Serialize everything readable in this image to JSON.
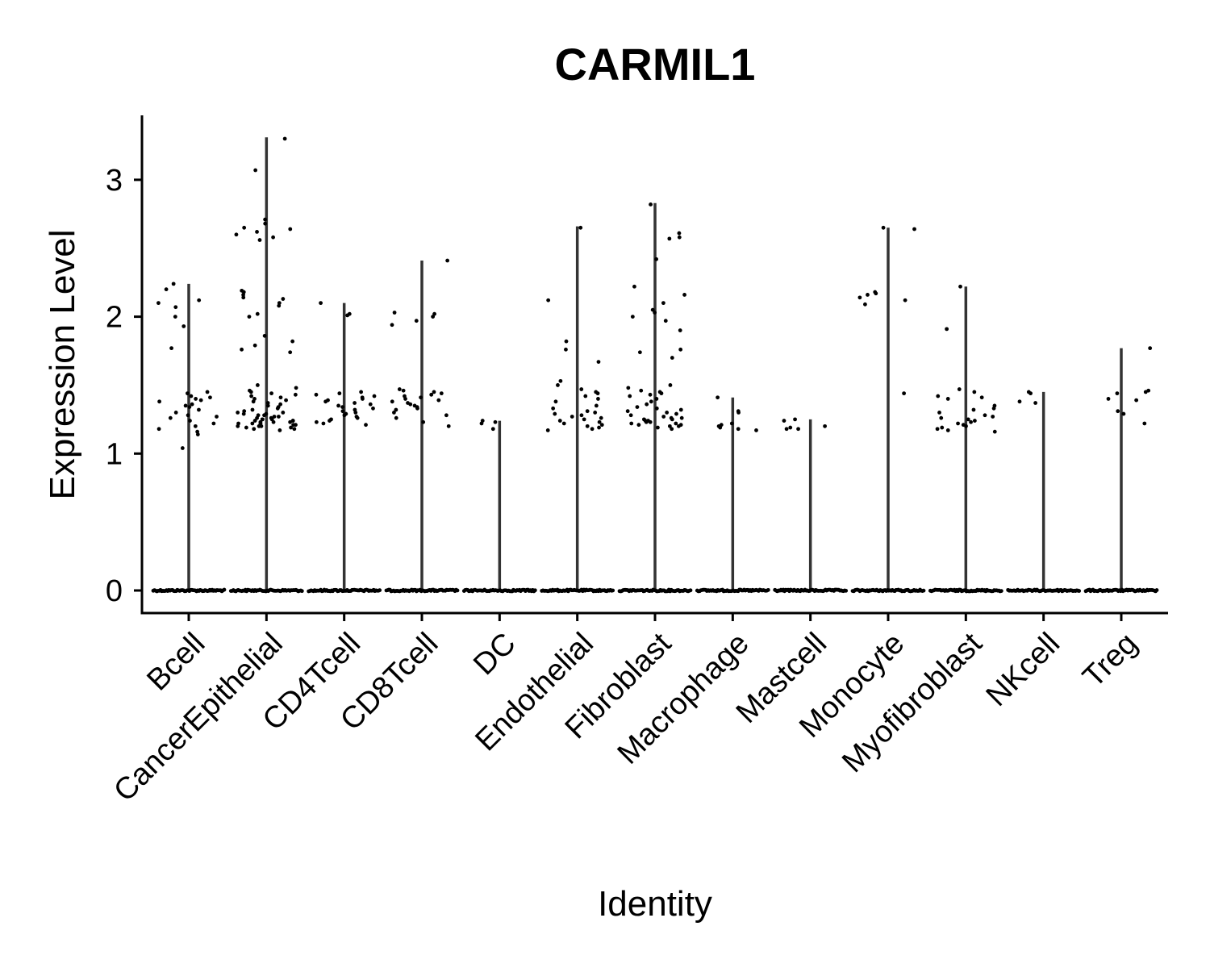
{
  "chart_data": {
    "type": "violin",
    "title": "CARMIL1",
    "xlabel": "Identity",
    "ylabel": "Expression Level",
    "ylim": [
      -0.16,
      3.48
    ],
    "yticks": [
      0,
      1,
      2,
      3
    ],
    "grid": false,
    "legend": "none",
    "point_color": "#000000",
    "violin_color": "#333333",
    "categories": [
      "Bcell",
      "CancerEpithelial",
      "CD4Tcell",
      "CD8Tcell",
      "DC",
      "Endothelial",
      "Fibroblast",
      "Macrophage",
      "Mastcell",
      "Monocyte",
      "Myofibroblast",
      "NKcell",
      "Treg"
    ],
    "series": [
      {
        "values": [
          [
            2.24,
            2.2,
            2.12,
            2.1,
            2.07,
            2.0,
            1.93,
            1.77,
            1.45,
            1.44,
            1.42,
            1.41,
            1.4,
            1.39,
            1.38,
            1.36,
            1.35,
            1.34,
            1.32,
            1.3,
            1.28,
            1.27,
            1.26,
            1.24,
            1.22,
            1.2,
            1.18,
            1.16,
            1.14,
            1.04
          ],
          [
            3.3,
            3.07,
            2.71,
            2.68,
            2.65,
            2.64,
            2.62,
            2.6,
            2.58,
            2.56,
            2.19,
            2.18,
            2.16,
            2.14,
            2.13,
            2.1,
            2.08,
            2.02,
            2.0,
            1.86,
            1.82,
            1.79,
            1.76,
            1.74,
            1.5,
            1.48,
            1.46,
            1.45,
            1.44,
            1.43,
            1.42,
            1.41,
            1.4,
            1.39,
            1.38,
            1.37,
            1.36,
            1.35,
            1.34,
            1.33,
            1.32,
            1.31,
            1.3,
            1.3,
            1.29,
            1.29,
            1.28,
            1.28,
            1.27,
            1.27,
            1.26,
            1.26,
            1.25,
            1.25,
            1.25,
            1.24,
            1.24,
            1.24,
            1.23,
            1.23,
            1.23,
            1.22,
            1.22,
            1.22,
            1.21,
            1.21,
            1.21,
            1.2,
            1.2,
            1.2,
            1.19,
            1.19,
            1.18,
            1.18,
            1.17
          ],
          [
            2.1,
            2.02,
            2.01,
            1.45,
            1.44,
            1.43,
            1.42,
            1.41,
            1.4,
            1.39,
            1.38,
            1.37,
            1.36,
            1.35,
            1.34,
            1.33,
            1.32,
            1.31,
            1.3,
            1.29,
            1.28,
            1.27,
            1.26,
            1.25,
            1.24,
            1.23,
            1.22,
            1.21
          ],
          [
            2.41,
            2.03,
            2.02,
            2.0,
            1.97,
            1.94,
            1.47,
            1.46,
            1.45,
            1.44,
            1.43,
            1.42,
            1.41,
            1.4,
            1.39,
            1.38,
            1.37,
            1.36,
            1.35,
            1.34,
            1.33,
            1.32,
            1.3,
            1.28,
            1.26,
            1.23,
            1.2
          ],
          [
            1.24,
            1.23,
            1.22,
            1.18
          ],
          [
            2.65,
            2.12,
            1.82,
            1.76,
            1.67,
            1.53,
            1.5,
            1.47,
            1.45,
            1.44,
            1.42,
            1.4,
            1.38,
            1.35,
            1.33,
            1.31,
            1.3,
            1.29,
            1.28,
            1.27,
            1.26,
            1.25,
            1.24,
            1.23,
            1.22,
            1.21,
            1.2,
            1.19,
            1.18,
            1.17
          ],
          [
            2.82,
            2.61,
            2.58,
            2.57,
            2.42,
            2.22,
            2.16,
            2.1,
            2.05,
            2.03,
            2.0,
            1.97,
            1.9,
            1.76,
            1.74,
            1.7,
            1.5,
            1.48,
            1.46,
            1.45,
            1.44,
            1.43,
            1.42,
            1.4,
            1.38,
            1.36,
            1.34,
            1.33,
            1.32,
            1.31,
            1.3,
            1.29,
            1.28,
            1.27,
            1.26,
            1.26,
            1.25,
            1.25,
            1.24,
            1.24,
            1.23,
            1.23,
            1.22,
            1.22,
            1.21,
            1.21,
            1.2,
            1.2,
            1.19,
            1.18
          ],
          [
            1.41,
            1.31,
            1.3,
            1.22,
            1.21,
            1.2,
            1.19,
            1.18,
            1.17
          ],
          [
            1.25,
            1.24,
            1.2,
            1.19,
            1.18,
            1.18
          ],
          [
            2.65,
            2.64,
            2.18,
            2.17,
            2.16,
            2.14,
            2.12,
            2.09,
            1.44
          ],
          [
            2.22,
            1.91,
            1.47,
            1.45,
            1.42,
            1.41,
            1.4,
            1.35,
            1.33,
            1.32,
            1.3,
            1.28,
            1.27,
            1.26,
            1.25,
            1.24,
            1.23,
            1.22,
            1.21,
            1.2,
            1.19,
            1.18,
            1.17,
            1.16
          ],
          [
            1.45,
            1.44,
            1.38,
            1.37
          ],
          [
            1.77,
            1.46,
            1.45,
            1.44,
            1.4,
            1.39,
            1.31,
            1.29,
            1.22
          ]
        ]
      }
    ],
    "violin_max": [
      2.24,
      3.31,
      2.1,
      2.41,
      1.24,
      2.66,
      2.83,
      1.41,
      1.25,
      2.65,
      2.22,
      1.45,
      1.77
    ],
    "zero_dots": true
  }
}
